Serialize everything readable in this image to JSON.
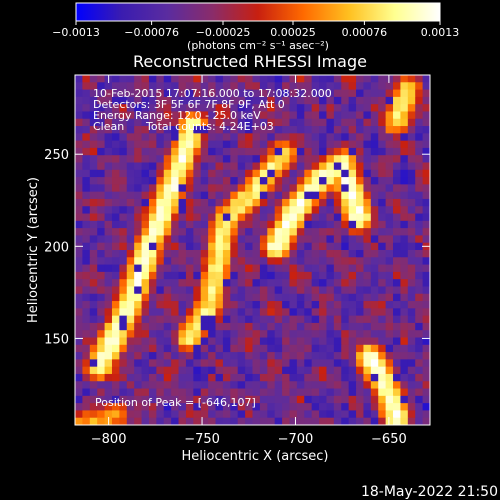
{
  "chart_data": {
    "type": "heatmap",
    "title": "Reconstructed RHESSI Image",
    "xlabel": "Heliocentric X (arcsec)",
    "ylabel": "Heliocentric Y (arcsec)",
    "xlim": [
      -818,
      -628
    ],
    "ylim": [
      103,
      293
    ],
    "xticks": [
      -800,
      -750,
      -700,
      -650
    ],
    "xtick_labels": [
      "−800",
      "−750",
      "−700",
      "−650"
    ],
    "yticks": [
      150,
      200,
      250
    ],
    "ytick_labels": [
      "150",
      "200",
      "250"
    ],
    "colorbar": {
      "min": -0.0013,
      "max": 0.0013,
      "ticks": [
        -0.0013,
        -0.00076,
        -0.00025,
        0.00025,
        0.00076,
        0.0013
      ],
      "tick_labels": [
        "−0.0013",
        "−0.00076",
        "−0.00025",
        "0.00025",
        "0.00076",
        "0.0013"
      ],
      "unit_label": "(photons cm⁻² s⁻¹ asec⁻²)",
      "colormap": [
        "#0000ff",
        "#3a1cb0",
        "#5a2ca0",
        "#8a2c6a",
        "#c82010",
        "#ff6a00",
        "#ffc020",
        "#ffff90",
        "#ffffff"
      ]
    },
    "grid": false,
    "peak": [
      -646,
      107
    ],
    "map_grid": {
      "cols": 48,
      "rows": 48
    },
    "bright_ridges": [
      {
        "name": "left",
        "points": [
          [
            -805,
            135
          ],
          [
            -790,
            165
          ],
          [
            -780,
            195
          ],
          [
            -765,
            235
          ],
          [
            -755,
            265
          ]
        ],
        "peak_level": 0.95
      },
      {
        "name": "middle",
        "points": [
          [
            -757,
            150
          ],
          [
            -747,
            165
          ],
          [
            -742,
            190
          ],
          [
            -737,
            215
          ],
          [
            -722,
            230
          ],
          [
            -707,
            250
          ]
        ],
        "peak_level": 0.85
      },
      {
        "name": "right",
        "points": [
          [
            -710,
            200
          ],
          [
            -700,
            220
          ],
          [
            -688,
            235
          ],
          [
            -675,
            245
          ],
          [
            -666,
            215
          ]
        ],
        "peak_level": 0.97
      },
      {
        "name": "top-right",
        "points": [
          [
            -646,
            268
          ],
          [
            -640,
            285
          ]
        ],
        "peak_level": 0.85
      },
      {
        "name": "bottom-right",
        "points": [
          [
            -660,
            140
          ],
          [
            -652,
            125
          ],
          [
            -646,
            107
          ]
        ],
        "peak_level": 0.95
      },
      {
        "name": "bottom-left",
        "points": [
          [
            -818,
            103
          ],
          [
            -795,
            108
          ]
        ],
        "peak_level": 0.7
      }
    ]
  },
  "info": {
    "time_range": "10-Feb-2015 17:07:16.000 to 17:08:32.000",
    "detectors": "Detectors: 3F 5F 6F 7F 8F 9F, Att 0",
    "energy": "Energy Range: 12.0 - 25.0 keV",
    "method_label": "Clean",
    "counts": "Total counts: 4.24E+03",
    "peak_label": "Position of Peak = [-646,107]"
  },
  "footer": {
    "timestamp": "18-May-2022 21:50"
  }
}
